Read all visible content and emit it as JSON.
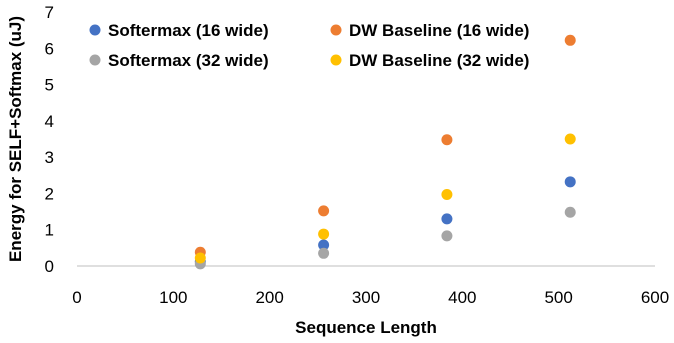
{
  "chart_data": {
    "type": "scatter",
    "title": "",
    "xlabel": "Sequence Length",
    "ylabel": "Energy for SELF+Softmax (uJ)",
    "xlim": [
      0,
      600
    ],
    "ylim": [
      0,
      7
    ],
    "x_ticks": [
      0,
      100,
      200,
      300,
      400,
      500,
      600
    ],
    "y_ticks": [
      0,
      1,
      2,
      3,
      4,
      5,
      6,
      7
    ],
    "grid": false,
    "legend_position": "top",
    "series": [
      {
        "name": "Softermax (16 wide)",
        "color": "#4472C4",
        "points": [
          [
            128,
            0.12
          ],
          [
            256,
            0.58
          ],
          [
            384,
            1.3
          ],
          [
            512,
            2.32
          ]
        ]
      },
      {
        "name": "DW Baseline (16 wide)",
        "color": "#ED7D31",
        "points": [
          [
            128,
            0.38
          ],
          [
            256,
            1.52
          ],
          [
            384,
            3.48
          ],
          [
            512,
            6.22
          ]
        ]
      },
      {
        "name": "Softermax (32 wide)",
        "color": "#A5A5A5",
        "points": [
          [
            128,
            0.06
          ],
          [
            256,
            0.35
          ],
          [
            384,
            0.83
          ],
          [
            512,
            1.48
          ]
        ]
      },
      {
        "name": "DW Baseline (32 wide)",
        "color": "#FFC000",
        "points": [
          [
            128,
            0.22
          ],
          [
            256,
            0.88
          ],
          [
            384,
            1.97
          ],
          [
            512,
            3.5
          ]
        ]
      }
    ]
  }
}
